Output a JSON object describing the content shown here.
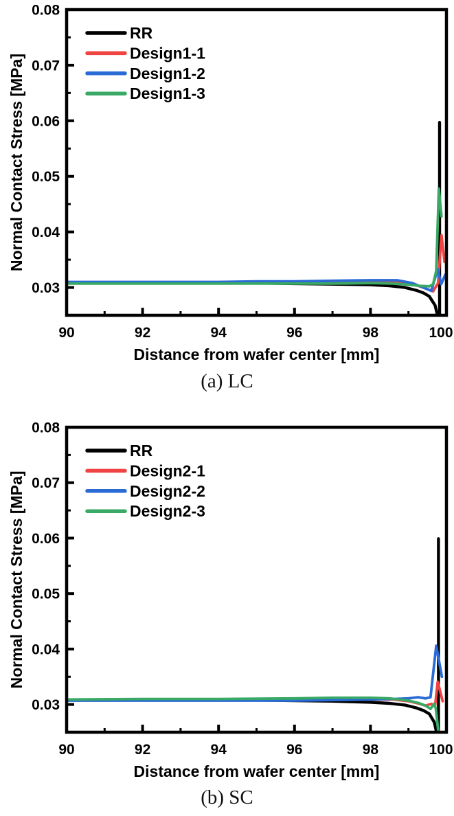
{
  "page": {
    "background": "#ffffff"
  },
  "chart_data": [
    {
      "type": "line",
      "caption": "(a) LC",
      "xlabel": "Distance from wafer center [mm]",
      "ylabel": "Normal Contact Stress [MPa]",
      "xlim": [
        90,
        100
      ],
      "ylim": [
        0.025,
        0.08
      ],
      "grid": false,
      "legend_position": "top-left",
      "x_tick_values": [
        90,
        92,
        94,
        96,
        98,
        100
      ],
      "x_tick_labels": [
        "90",
        "92",
        "94",
        "96",
        "98",
        "100"
      ],
      "x_minor_ticks": [
        91,
        93,
        95,
        97,
        99
      ],
      "y_tick_values": [
        0.03,
        0.04,
        0.05,
        0.06,
        0.07,
        0.08
      ],
      "y_tick_labels": [
        "0.03",
        "0.04",
        "0.05",
        "0.06",
        "0.07",
        "0.08"
      ],
      "y_minor_ticks": [
        0.035,
        0.045,
        0.055,
        0.065,
        0.075
      ],
      "series": [
        {
          "name": "RR",
          "color": "#000000",
          "points": [
            [
              90,
              0.0308
            ],
            [
              91,
              0.0308
            ],
            [
              92,
              0.0308
            ],
            [
              93,
              0.0308
            ],
            [
              94,
              0.0308
            ],
            [
              95,
              0.0308
            ],
            [
              96,
              0.0307
            ],
            [
              97,
              0.0306
            ],
            [
              98,
              0.0305
            ],
            [
              98.5,
              0.0303
            ],
            [
              98.9,
              0.03
            ],
            [
              99.2,
              0.0295
            ],
            [
              99.4,
              0.029
            ],
            [
              99.55,
              0.0284
            ],
            [
              99.7,
              0.0268
            ],
            [
              99.78,
              0.0246
            ],
            [
              99.8,
              0.0215
            ],
            [
              99.82,
              0.0215
            ],
            [
              99.82,
              0.0597
            ]
          ]
        },
        {
          "name": "Design1-1",
          "color": "#F04343",
          "points": [
            [
              90,
              0.0308
            ],
            [
              92,
              0.0308
            ],
            [
              94,
              0.0308
            ],
            [
              95,
              0.0309
            ],
            [
              96,
              0.0309
            ],
            [
              97,
              0.031
            ],
            [
              98,
              0.031
            ],
            [
              98.6,
              0.0311
            ],
            [
              99,
              0.0308
            ],
            [
              99.3,
              0.0302
            ],
            [
              99.5,
              0.0297
            ],
            [
              99.65,
              0.0293
            ],
            [
              99.78,
              0.0308
            ],
            [
              99.87,
              0.0394
            ],
            [
              99.95,
              0.0346
            ]
          ]
        },
        {
          "name": "Design1-2",
          "color": "#2A6BD5",
          "points": [
            [
              90,
              0.031
            ],
            [
              92,
              0.031
            ],
            [
              94,
              0.031
            ],
            [
              95,
              0.0311
            ],
            [
              96,
              0.0311
            ],
            [
              97,
              0.0312
            ],
            [
              98,
              0.0313
            ],
            [
              98.7,
              0.0313
            ],
            [
              99.1,
              0.0308
            ],
            [
              99.35,
              0.0301
            ],
            [
              99.6,
              0.0294
            ],
            [
              99.77,
              0.0333
            ],
            [
              99.86,
              0.0306
            ],
            [
              99.97,
              0.0323
            ]
          ]
        },
        {
          "name": "Design1-3",
          "color": "#39A965",
          "points": [
            [
              90,
              0.0307
            ],
            [
              92,
              0.0307
            ],
            [
              94,
              0.0307
            ],
            [
              96,
              0.0307
            ],
            [
              97,
              0.0307
            ],
            [
              98,
              0.0308
            ],
            [
              98.6,
              0.0307
            ],
            [
              99,
              0.0305
            ],
            [
              99.3,
              0.0303
            ],
            [
              99.55,
              0.0302
            ],
            [
              99.65,
              0.0306
            ],
            [
              99.73,
              0.033
            ],
            [
              99.8,
              0.0478
            ],
            [
              99.87,
              0.0428
            ]
          ]
        }
      ]
    },
    {
      "type": "line",
      "caption": "(b) SC",
      "xlabel": "Distance from wafer center [mm]",
      "ylabel": "Normal Contact Stress [MPa]",
      "xlim": [
        90,
        100
      ],
      "ylim": [
        0.025,
        0.08
      ],
      "grid": false,
      "legend_position": "top-left",
      "x_tick_values": [
        90,
        92,
        94,
        96,
        98,
        100
      ],
      "x_tick_labels": [
        "90",
        "92",
        "94",
        "96",
        "98",
        "100"
      ],
      "x_minor_ticks": [
        91,
        93,
        95,
        97,
        99
      ],
      "y_tick_values": [
        0.03,
        0.04,
        0.05,
        0.06,
        0.07,
        0.08
      ],
      "y_tick_labels": [
        "0.03",
        "0.04",
        "0.05",
        "0.06",
        "0.07",
        "0.08"
      ],
      "y_minor_ticks": [
        0.035,
        0.045,
        0.055,
        0.065,
        0.075
      ],
      "series": [
        {
          "name": "RR",
          "color": "#000000",
          "points": [
            [
              90,
              0.0308
            ],
            [
              91,
              0.0308
            ],
            [
              92,
              0.0308
            ],
            [
              93,
              0.0308
            ],
            [
              94,
              0.0308
            ],
            [
              95,
              0.0308
            ],
            [
              96,
              0.0307
            ],
            [
              97,
              0.0306
            ],
            [
              98,
              0.0304
            ],
            [
              98.5,
              0.0302
            ],
            [
              98.9,
              0.0299
            ],
            [
              99.2,
              0.0294
            ],
            [
              99.4,
              0.0289
            ],
            [
              99.55,
              0.0283
            ],
            [
              99.68,
              0.0268
            ],
            [
              99.74,
              0.025
            ],
            [
              99.76,
              0.0215
            ],
            [
              99.79,
              0.0215
            ],
            [
              99.79,
              0.0599
            ]
          ]
        },
        {
          "name": "Design2-1",
          "color": "#F04343",
          "points": [
            [
              90,
              0.0308
            ],
            [
              92,
              0.0308
            ],
            [
              94,
              0.0308
            ],
            [
              96,
              0.0308
            ],
            [
              97,
              0.0309
            ],
            [
              98,
              0.0309
            ],
            [
              98.6,
              0.0309
            ],
            [
              99,
              0.0306
            ],
            [
              99.25,
              0.0302
            ],
            [
              99.45,
              0.0298
            ],
            [
              99.6,
              0.0301
            ],
            [
              99.7,
              0.0297
            ],
            [
              99.77,
              0.0341
            ],
            [
              99.9,
              0.0306
            ]
          ]
        },
        {
          "name": "Design2-2",
          "color": "#2A6BD5",
          "points": [
            [
              90,
              0.0307
            ],
            [
              92,
              0.0307
            ],
            [
              94,
              0.0307
            ],
            [
              96,
              0.0307
            ],
            [
              97,
              0.0308
            ],
            [
              98,
              0.0309
            ],
            [
              98.6,
              0.031
            ],
            [
              99,
              0.0311
            ],
            [
              99.25,
              0.0313
            ],
            [
              99.45,
              0.0311
            ],
            [
              99.58,
              0.0313
            ],
            [
              99.73,
              0.0406
            ],
            [
              99.88,
              0.035
            ]
          ]
        },
        {
          "name": "Design2-3",
          "color": "#39A965",
          "points": [
            [
              90,
              0.0309
            ],
            [
              92,
              0.031
            ],
            [
              94,
              0.031
            ],
            [
              96,
              0.0311
            ],
            [
              97,
              0.0312
            ],
            [
              98,
              0.0312
            ],
            [
              98.5,
              0.0311
            ],
            [
              99,
              0.0307
            ],
            [
              99.25,
              0.0303
            ],
            [
              99.45,
              0.0298
            ],
            [
              99.58,
              0.0292
            ],
            [
              99.67,
              0.0301
            ],
            [
              99.72,
              0.0293
            ],
            [
              99.78,
              0.0255
            ],
            [
              99.81,
              0.021
            ]
          ]
        }
      ]
    }
  ]
}
